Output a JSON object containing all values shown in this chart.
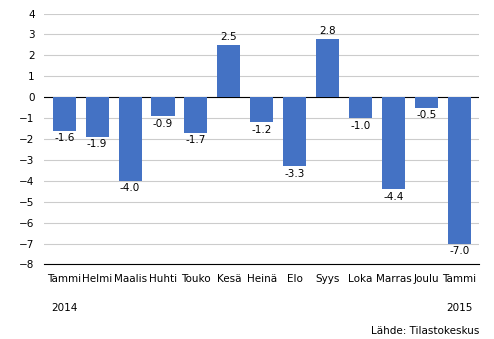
{
  "categories": [
    "Tammi",
    "Helmi",
    "Maalis",
    "Huhti",
    "Touko",
    "Kesä",
    "Heinä",
    "Elo",
    "Syys",
    "Loka",
    "Marras",
    "Joulu",
    "Tammi"
  ],
  "values": [
    -1.6,
    -1.9,
    -4.0,
    -0.9,
    -1.7,
    2.5,
    -1.2,
    -3.3,
    2.8,
    -1.0,
    -4.4,
    -0.5,
    -7.0
  ],
  "bar_color": "#4472C4",
  "ylim": [
    -8,
    4
  ],
  "yticks": [
    -8,
    -7,
    -6,
    -5,
    -4,
    -3,
    -2,
    -1,
    0,
    1,
    2,
    3,
    4
  ],
  "year_label_2014": "2014",
  "year_label_2015": "2015",
  "year_idx_2014": 0,
  "year_idx_2015": 12,
  "source_text": "Lähde: Tilastokeskus",
  "background_color": "#ffffff",
  "grid_color": "#cccccc",
  "label_fontsize": 7.5,
  "axis_fontsize": 7.5
}
